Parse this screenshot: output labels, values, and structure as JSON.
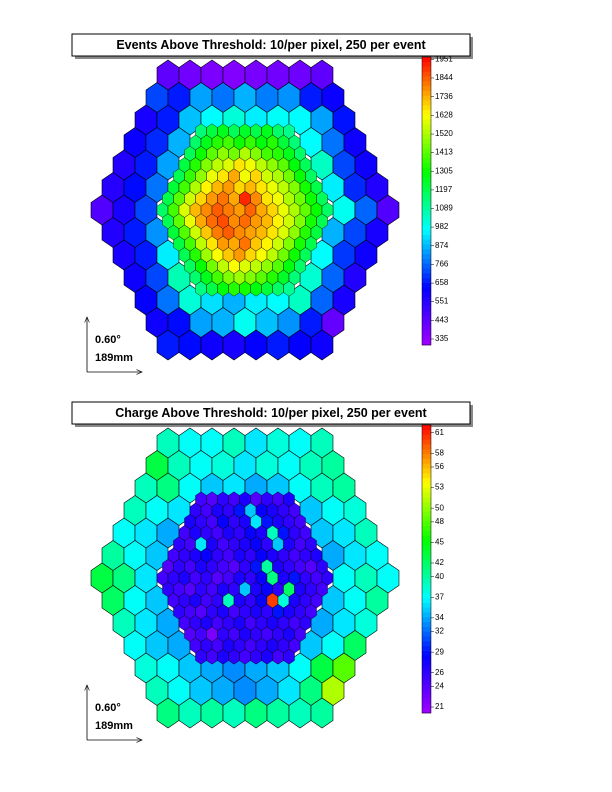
{
  "chart_data": [
    {
      "type": "hexmap",
      "title": "Events Above Threshold: 10/per pixel, 250 per event",
      "zlim": [
        335,
        2000
      ],
      "zticks": [
        335,
        443,
        551,
        658,
        766,
        874,
        982,
        1089,
        1197,
        1305,
        1413,
        1520,
        1628,
        1736,
        1844,
        1951
      ],
      "palette": [
        "#a000ff",
        "#0000ff",
        "#00ffff",
        "#00ff00",
        "#ffff00",
        "#ff0000"
      ],
      "scale_bar": {
        "angle": "0.60°",
        "length": "189mm"
      },
      "big_pixels": [
        [
          470,
          430,
          410,
          400,
          420,
          430,
          440,
          470
        ],
        [
          760,
          700,
          880,
          820,
          900,
          830,
          860,
          700,
          650
        ],
        [
          620,
          700,
          920,
          1000,
          1050,
          980,
          1010,
          1000,
          880,
          690
        ],
        [
          650,
          720,
          900,
          null,
          null,
          null,
          null,
          null,
          1000,
          820,
          640
        ],
        [
          600,
          700,
          880,
          null,
          null,
          null,
          null,
          null,
          null,
          1080,
          760,
          640
        ],
        [
          590,
          680,
          820,
          null,
          null,
          null,
          null,
          null,
          null,
          null,
          980,
          720,
          600
        ],
        [
          500,
          620,
          760,
          null,
          null,
          null,
          null,
          null,
          null,
          null,
          null,
          1020,
          800,
          500
        ],
        [
          600,
          700,
          860,
          null,
          null,
          null,
          null,
          null,
          null,
          null,
          900,
          760,
          620
        ],
        [
          620,
          700,
          980,
          null,
          null,
          null,
          null,
          null,
          null,
          1000,
          740,
          640
        ],
        [
          640,
          760,
          1100,
          null,
          null,
          null,
          null,
          null,
          1060,
          800,
          600
        ],
        [
          660,
          820,
          1050,
          960,
          900,
          980,
          1000,
          1080,
          800,
          620
        ],
        [
          640,
          680,
          880,
          900,
          1020,
          920,
          860,
          700,
          460
        ],
        [
          700,
          680,
          640,
          620,
          660,
          700,
          660,
          640
        ]
      ],
      "small_pixels": [
        [
          1180,
          1250,
          1300,
          1220,
          1280,
          1240,
          1300,
          1200,
          1150
        ],
        [
          1200,
          1300,
          1380,
          1420,
          1350,
          1400,
          1320,
          1380,
          1260,
          1180
        ],
        [
          1220,
          1350,
          1450,
          1520,
          1480,
          1560,
          1500,
          1420,
          1380,
          1300,
          1200
        ],
        [
          1250,
          1380,
          1500,
          1580,
          1620,
          1700,
          1650,
          1580,
          1520,
          1450,
          1320,
          1220
        ],
        [
          1230,
          1400,
          1520,
          1640,
          1700,
          1780,
          1650,
          1720,
          1600,
          1560,
          1480,
          1340,
          1210
        ],
        [
          1260,
          1420,
          1560,
          1680,
          1760,
          1800,
          1720,
          1760,
          1700,
          1640,
          1580,
          1500,
          1360,
          1240
        ],
        [
          1240,
          1450,
          1600,
          1720,
          1800,
          1850,
          1780,
          1950,
          1820,
          1700,
          1650,
          1560,
          1480,
          1350,
          1220
        ],
        [
          1200,
          1420,
          1620,
          1760,
          1820,
          1880,
          1840,
          1800,
          1870,
          1780,
          1720,
          1640,
          1560,
          1460,
          1340,
          1200
        ],
        [
          1230,
          1460,
          1640,
          1780,
          1860,
          1900,
          1820,
          1860,
          1800,
          1760,
          1680,
          1600,
          1500,
          1360,
          1230
        ],
        [
          1260,
          1440,
          1600,
          1740,
          1840,
          1880,
          1820,
          1790,
          1760,
          1700,
          1620,
          1520,
          1380,
          1250
        ],
        [
          1250,
          1420,
          1580,
          1700,
          1800,
          1780,
          1850,
          1740,
          1680,
          1600,
          1500,
          1360,
          1240
        ],
        [
          1230,
          1380,
          1540,
          1660,
          1740,
          1800,
          1720,
          1660,
          1580,
          1480,
          1350,
          1220
        ],
        [
          1210,
          1340,
          1480,
          1580,
          1660,
          1620,
          1580,
          1520,
          1440,
          1320,
          1200
        ],
        [
          1190,
          1300,
          1420,
          1500,
          1540,
          1500,
          1450,
          1380,
          1280,
          1180
        ],
        [
          1160,
          1240,
          1320,
          1380,
          1360,
          1320,
          1260,
          1200,
          1140
        ]
      ]
    },
    {
      "type": "hexmap",
      "title": "Charge Above Threshold: 10/per pixel, 250 per event",
      "zlim": [
        21,
        63
      ],
      "zticks": [
        21,
        24,
        26,
        29,
        32,
        34,
        37,
        40,
        42,
        45,
        48,
        50,
        53,
        56,
        58,
        61
      ],
      "palette": [
        "#a000ff",
        "#0000ff",
        "#00ffff",
        "#00ff00",
        "#ffff00",
        "#ff0000"
      ],
      "scale_bar": {
        "angle": "0.60°",
        "length": "189mm"
      },
      "big_pixels": [
        [
          40,
          38,
          38,
          40,
          37,
          39,
          38,
          40
        ],
        [
          44,
          40,
          38,
          39,
          37,
          39,
          38,
          40,
          41
        ],
        [
          40,
          42,
          38,
          36,
          37,
          35,
          36,
          38,
          40,
          41
        ],
        [
          40,
          38,
          37,
          null,
          null,
          null,
          null,
          null,
          36,
          38,
          39
        ],
        [
          38,
          37,
          35,
          null,
          null,
          null,
          null,
          null,
          null,
          36,
          37,
          40
        ],
        [
          41,
          38,
          36,
          null,
          null,
          null,
          null,
          null,
          null,
          null,
          35,
          37,
          38
        ],
        [
          44,
          42,
          37,
          null,
          null,
          null,
          null,
          null,
          null,
          null,
          null,
          38,
          40,
          38
        ],
        [
          43,
          38,
          36,
          null,
          null,
          null,
          null,
          null,
          null,
          null,
          36,
          38,
          41
        ],
        [
          40,
          37,
          35,
          null,
          null,
          null,
          null,
          null,
          null,
          35,
          37,
          39
        ],
        [
          38,
          36,
          35,
          null,
          null,
          null,
          null,
          null,
          36,
          38,
          43
        ],
        [
          39,
          38,
          36,
          35,
          34,
          35,
          36,
          38,
          44,
          49
        ],
        [
          40,
          38,
          36,
          35,
          34,
          35,
          37,
          42,
          52
        ],
        [
          42,
          40,
          41,
          40,
          42,
          41,
          40,
          41
        ]
      ],
      "small_pixels": [
        [
          26,
          25,
          27,
          26,
          28,
          25,
          27,
          26,
          28
        ],
        [
          27,
          26,
          28,
          27,
          30,
          36,
          29,
          28,
          27,
          26
        ],
        [
          28,
          27,
          26,
          29,
          27,
          28,
          37,
          30,
          28,
          27,
          26
        ],
        [
          26,
          28,
          27,
          26,
          28,
          27,
          29,
          28,
          40,
          30,
          27,
          26
        ],
        [
          27,
          26,
          37,
          28,
          26,
          27,
          28,
          29,
          27,
          36,
          28,
          26,
          27
        ],
        [
          26,
          27,
          28,
          29,
          27,
          26,
          28,
          27,
          29,
          28,
          27,
          26,
          27,
          28
        ],
        [
          25,
          27,
          26,
          28,
          27,
          26,
          25,
          27,
          30,
          41,
          28,
          27,
          26,
          25,
          27
        ],
        [
          26,
          27,
          28,
          26,
          27,
          25,
          26,
          28,
          27,
          29,
          42,
          28,
          30,
          27,
          26,
          27
        ],
        [
          27,
          26,
          25,
          27,
          26,
          28,
          27,
          36,
          28,
          29,
          27,
          43,
          28,
          27,
          26
        ],
        [
          26,
          27,
          28,
          26,
          27,
          40,
          28,
          27,
          29,
          61,
          39,
          28,
          27,
          26
        ],
        [
          27,
          26,
          25,
          27,
          28,
          26,
          27,
          28,
          27,
          30,
          28,
          27,
          26
        ],
        [
          26,
          27,
          28,
          26,
          27,
          28,
          26,
          27,
          28,
          27,
          26,
          27
        ],
        [
          25,
          26,
          23,
          27,
          26,
          28,
          27,
          26,
          27,
          28,
          26
        ],
        [
          26,
          27,
          26,
          28,
          27,
          26,
          27,
          28,
          27,
          26
        ],
        [
          27,
          26,
          28,
          27,
          26,
          27,
          28,
          26,
          27
        ]
      ]
    }
  ]
}
